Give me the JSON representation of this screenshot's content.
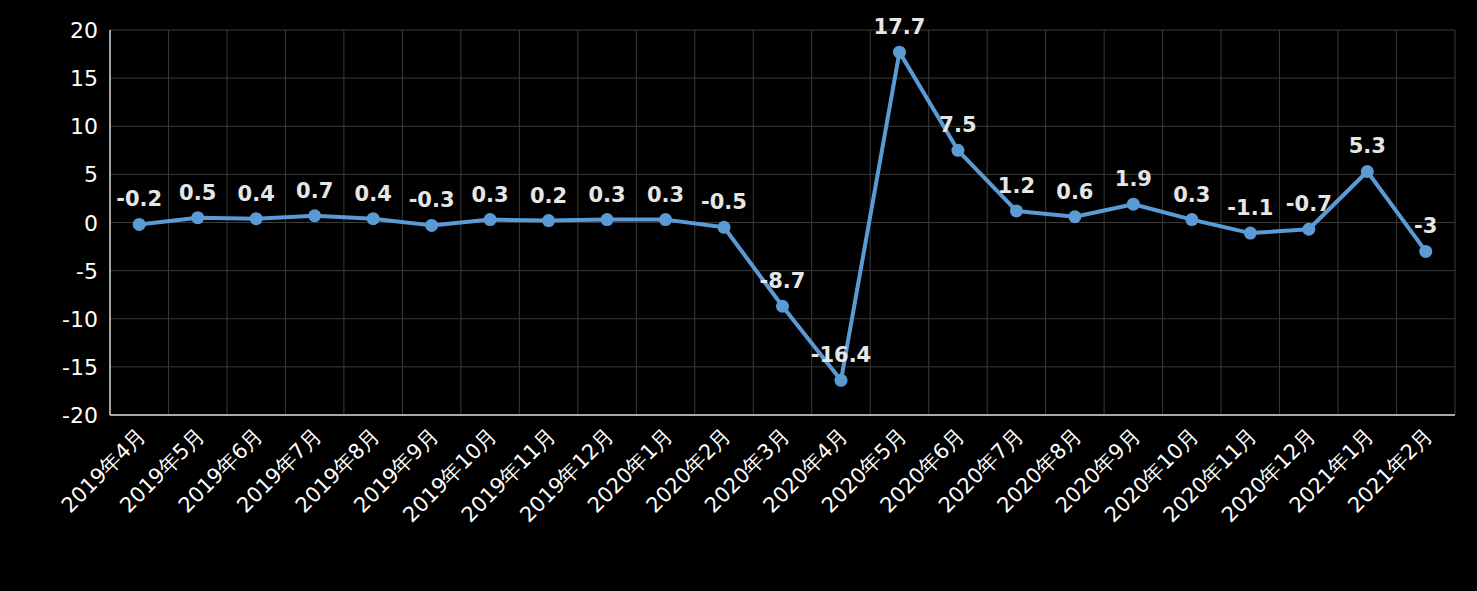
{
  "chart_data": {
    "type": "line",
    "categories": [
      "2019年4月",
      "2019年5月",
      "2019年6月",
      "2019年7月",
      "2019年8月",
      "2019年9月",
      "2019年10月",
      "2019年11月",
      "2019年12月",
      "2020年1月",
      "2020年2月",
      "2020年3月",
      "2020年4月",
      "2020年5月",
      "2020年6月",
      "2020年7月",
      "2020年8月",
      "2020年9月",
      "2020年10月",
      "2020年11月",
      "2020年12月",
      "2021年1月",
      "2021年2月"
    ],
    "values": [
      -0.2,
      0.5,
      0.4,
      0.7,
      0.4,
      -0.3,
      0.3,
      0.2,
      0.3,
      0.3,
      -0.5,
      -8.7,
      -16.4,
      17.7,
      7.5,
      1.2,
      0.6,
      1.9,
      0.3,
      -1.1,
      -0.7,
      5.3,
      -3
    ],
    "color": "#5b9bd5",
    "marker": "circle",
    "ylim": [
      -20,
      20
    ],
    "yticks": [
      -20,
      -15,
      -10,
      -5,
      0,
      5,
      10,
      15,
      20
    ],
    "grid": true,
    "data_labels": true
  }
}
